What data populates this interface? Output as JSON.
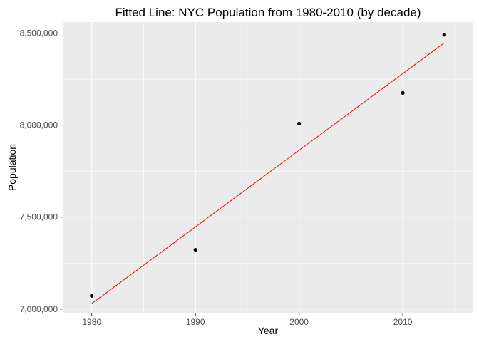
{
  "chart_data": {
    "type": "scatter",
    "title": "Fitted Line: NYC Population from 1980-2010 (by decade)",
    "xlabel": "Year",
    "ylabel": "Population",
    "xlim": [
      1977.2,
      2016.8
    ],
    "ylim": [
      6980000,
      8560000
    ],
    "x_ticks": [
      1980,
      1990,
      2000,
      2010
    ],
    "x_minor_ticks": [
      1985,
      1995,
      2005,
      2015
    ],
    "y_ticks": [
      7000000,
      7500000,
      8000000,
      8500000
    ],
    "y_tick_labels": [
      "7,000,000",
      "7,500,000",
      "8,000,000",
      "8,500,000"
    ],
    "y_minor_ticks": [
      7250000,
      7750000,
      8250000
    ],
    "points": [
      {
        "x": 1980,
        "y": 7071639
      },
      {
        "x": 1990,
        "y": 7322564
      },
      {
        "x": 2000,
        "y": 8008278
      },
      {
        "x": 2010,
        "y": 8175133
      },
      {
        "x": 2014,
        "y": 8491079
      }
    ],
    "fit_line": {
      "x": [
        1980,
        2014
      ],
      "y": [
        7030000,
        8447000
      ]
    },
    "grid": true,
    "colors": {
      "panel": "#ebebeb",
      "grid": "#ffffff",
      "point": "#000000",
      "fit_line": "#ff0000"
    }
  }
}
